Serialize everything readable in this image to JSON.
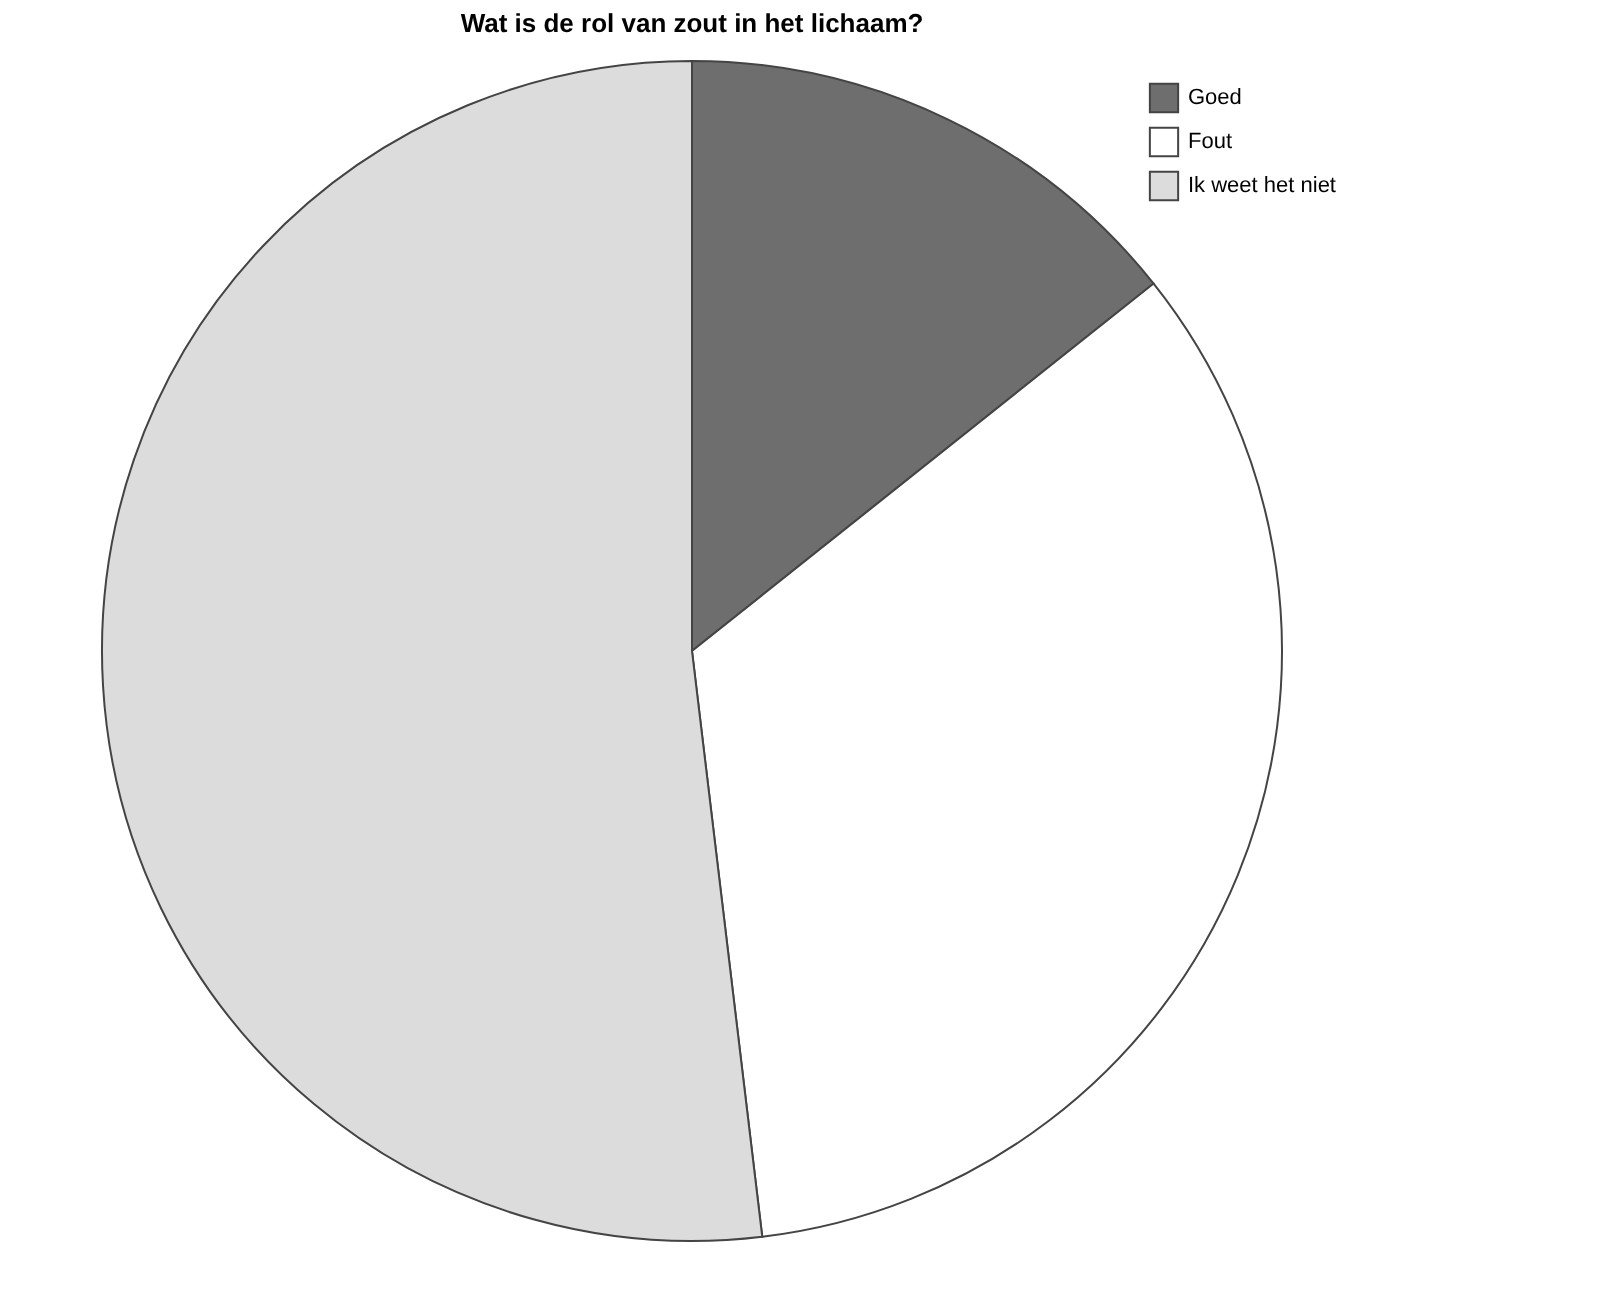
{
  "chart_data": {
    "type": "pie",
    "title": "Wat is de rol van zout in het lichaam?",
    "categories": [
      "Goed",
      "Fout",
      "Ik weet het niet"
    ],
    "values": [
      14.3,
      33.8,
      51.9
    ],
    "colors": [
      "#6e6e6e",
      "#ffffff",
      "#dcdcdc"
    ],
    "legend": "top right"
  }
}
